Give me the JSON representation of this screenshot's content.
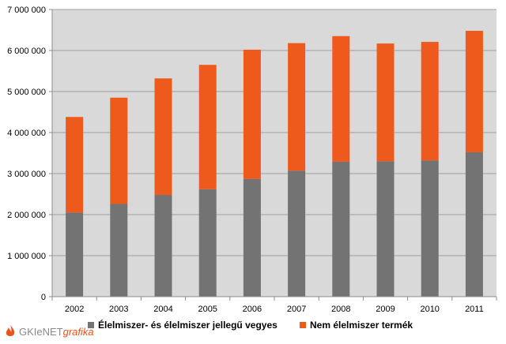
{
  "colors": {
    "plot_bg": "#d9d9d9",
    "food": "#737373",
    "nonfood": "#ee5a1c",
    "axis": "#8c8c8c",
    "grid": "#8c8c8c"
  },
  "logo": {
    "part1": "GKIeNET",
    "part2": "grafika"
  },
  "chart_data": {
    "type": "bar",
    "stacked": true,
    "categories": [
      "2002",
      "2003",
      "2004",
      "2005",
      "2006",
      "2007",
      "2008",
      "2009",
      "2010",
      "2011"
    ],
    "series": [
      {
        "name": "Élelmiszer- és élelmiszer jellegű vegyes",
        "color": "#737373",
        "values": [
          2050000,
          2260000,
          2480000,
          2620000,
          2870000,
          3070000,
          3290000,
          3300000,
          3320000,
          3520000
        ]
      },
      {
        "name": "Nem élelmiszer termék",
        "color": "#ee5a1c",
        "values": [
          2330000,
          2590000,
          2840000,
          3030000,
          3150000,
          3110000,
          3060000,
          2870000,
          2890000,
          2960000
        ]
      }
    ],
    "ylim": [
      0,
      7000000
    ],
    "yticks": [
      0,
      1000000,
      2000000,
      3000000,
      4000000,
      5000000,
      6000000,
      7000000
    ],
    "ytick_labels": [
      "0",
      "1 000 000",
      "2 000 000",
      "3 000 000",
      "4 000 000",
      "5 000 000",
      "6 000 000",
      "7 000 000"
    ],
    "grid": true,
    "legend_position": "bottom"
  }
}
